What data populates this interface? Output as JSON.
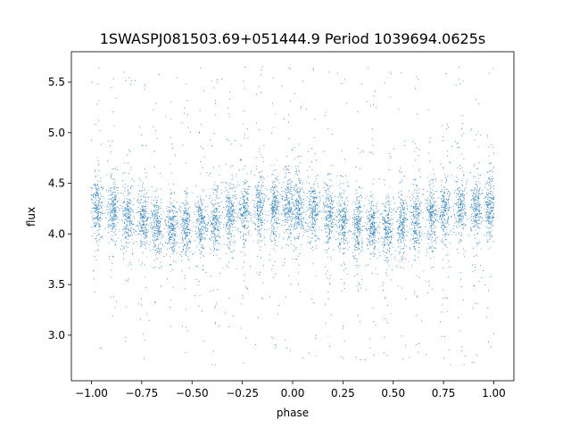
{
  "chart_data": {
    "type": "scatter",
    "title": "1SWASPJ081503.69+051444.9 Period 1039694.0625s",
    "xlabel": "phase",
    "ylabel": "flux",
    "xlim": [
      -1.1,
      1.1
    ],
    "ylim": [
      2.55,
      5.8
    ],
    "xticks": [
      -1.0,
      -0.75,
      -0.5,
      -0.25,
      0.0,
      0.25,
      0.5,
      0.75,
      1.0
    ],
    "xtick_labels": [
      "−1.00",
      "−0.75",
      "−0.50",
      "−0.25",
      "0.00",
      "0.25",
      "0.50",
      "0.75",
      "1.00"
    ],
    "yticks": [
      3.0,
      3.5,
      4.0,
      4.5,
      5.0,
      5.5
    ],
    "ytick_labels": [
      "3.0",
      "3.5",
      "4.0",
      "4.5",
      "5.0",
      "5.5"
    ],
    "grid": false,
    "point_color": "#1f77b4",
    "phase_range": [
      -1.0,
      1.0
    ],
    "cluster_centers": [
      -0.97,
      -0.895,
      -0.82,
      -0.745,
      -0.675,
      -0.6,
      -0.53,
      -0.455,
      -0.385,
      -0.31,
      -0.24,
      -0.165,
      -0.09,
      -0.02,
      0.03,
      0.105,
      0.18,
      0.25,
      0.325,
      0.395,
      0.47,
      0.545,
      0.615,
      0.69,
      0.76,
      0.835,
      0.91,
      0.98
    ],
    "flux_trend": [
      {
        "phase": -1.0,
        "flux": 4.26
      },
      {
        "phase": -0.9,
        "flux": 4.24
      },
      {
        "phase": -0.8,
        "flux": 4.17
      },
      {
        "phase": -0.7,
        "flux": 4.09
      },
      {
        "phase": -0.6,
        "flux": 4.05
      },
      {
        "phase": -0.5,
        "flux": 4.07
      },
      {
        "phase": -0.4,
        "flux": 4.12
      },
      {
        "phase": -0.3,
        "flux": 4.19
      },
      {
        "phase": -0.2,
        "flux": 4.25
      },
      {
        "phase": -0.1,
        "flux": 4.27
      },
      {
        "phase": 0.0,
        "flux": 4.27
      },
      {
        "phase": 0.1,
        "flux": 4.24
      },
      {
        "phase": 0.2,
        "flux": 4.17
      },
      {
        "phase": 0.3,
        "flux": 4.09
      },
      {
        "phase": 0.4,
        "flux": 4.05
      },
      {
        "phase": 0.5,
        "flux": 4.07
      },
      {
        "phase": 0.6,
        "flux": 4.12
      },
      {
        "phase": 0.7,
        "flux": 4.19
      },
      {
        "phase": 0.8,
        "flux": 4.25
      },
      {
        "phase": 0.9,
        "flux": 4.27
      },
      {
        "phase": 1.0,
        "flux": 4.26
      }
    ],
    "flux_spread": 0.14,
    "outlier_range": [
      2.7,
      5.65
    ]
  }
}
